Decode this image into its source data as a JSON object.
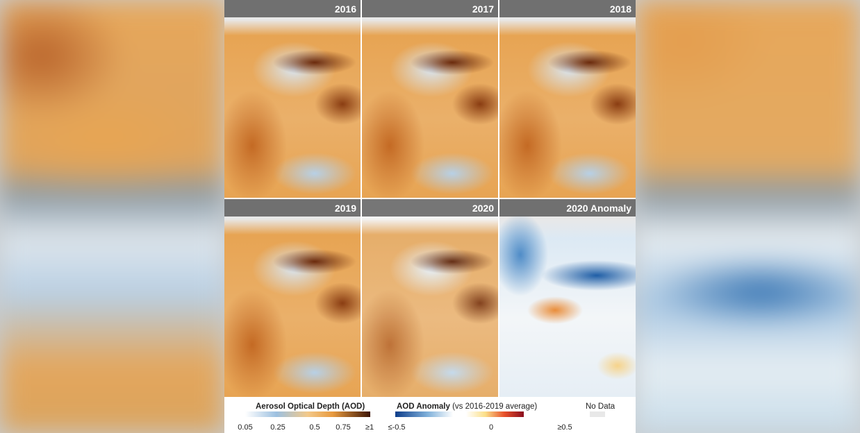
{
  "panels": [
    {
      "title": "2016"
    },
    {
      "title": "2017"
    },
    {
      "title": "2018"
    },
    {
      "title": "2019"
    },
    {
      "title": "2020"
    },
    {
      "title": "2020 Anomaly"
    }
  ],
  "legend": {
    "aod": {
      "title": "Aerosol Optical Depth (AOD)",
      "ticks": [
        "0.05",
        "0.25",
        "0.5",
        "0.75",
        "≥1"
      ]
    },
    "anomaly": {
      "title": "AOD Anomaly",
      "subtitle": "(vs 2016-2019 average)",
      "ticks": [
        "≤-0.5",
        "0",
        "≥0.5"
      ]
    },
    "nodata": {
      "label": "No Data",
      "color": "#e8e8e8"
    }
  }
}
